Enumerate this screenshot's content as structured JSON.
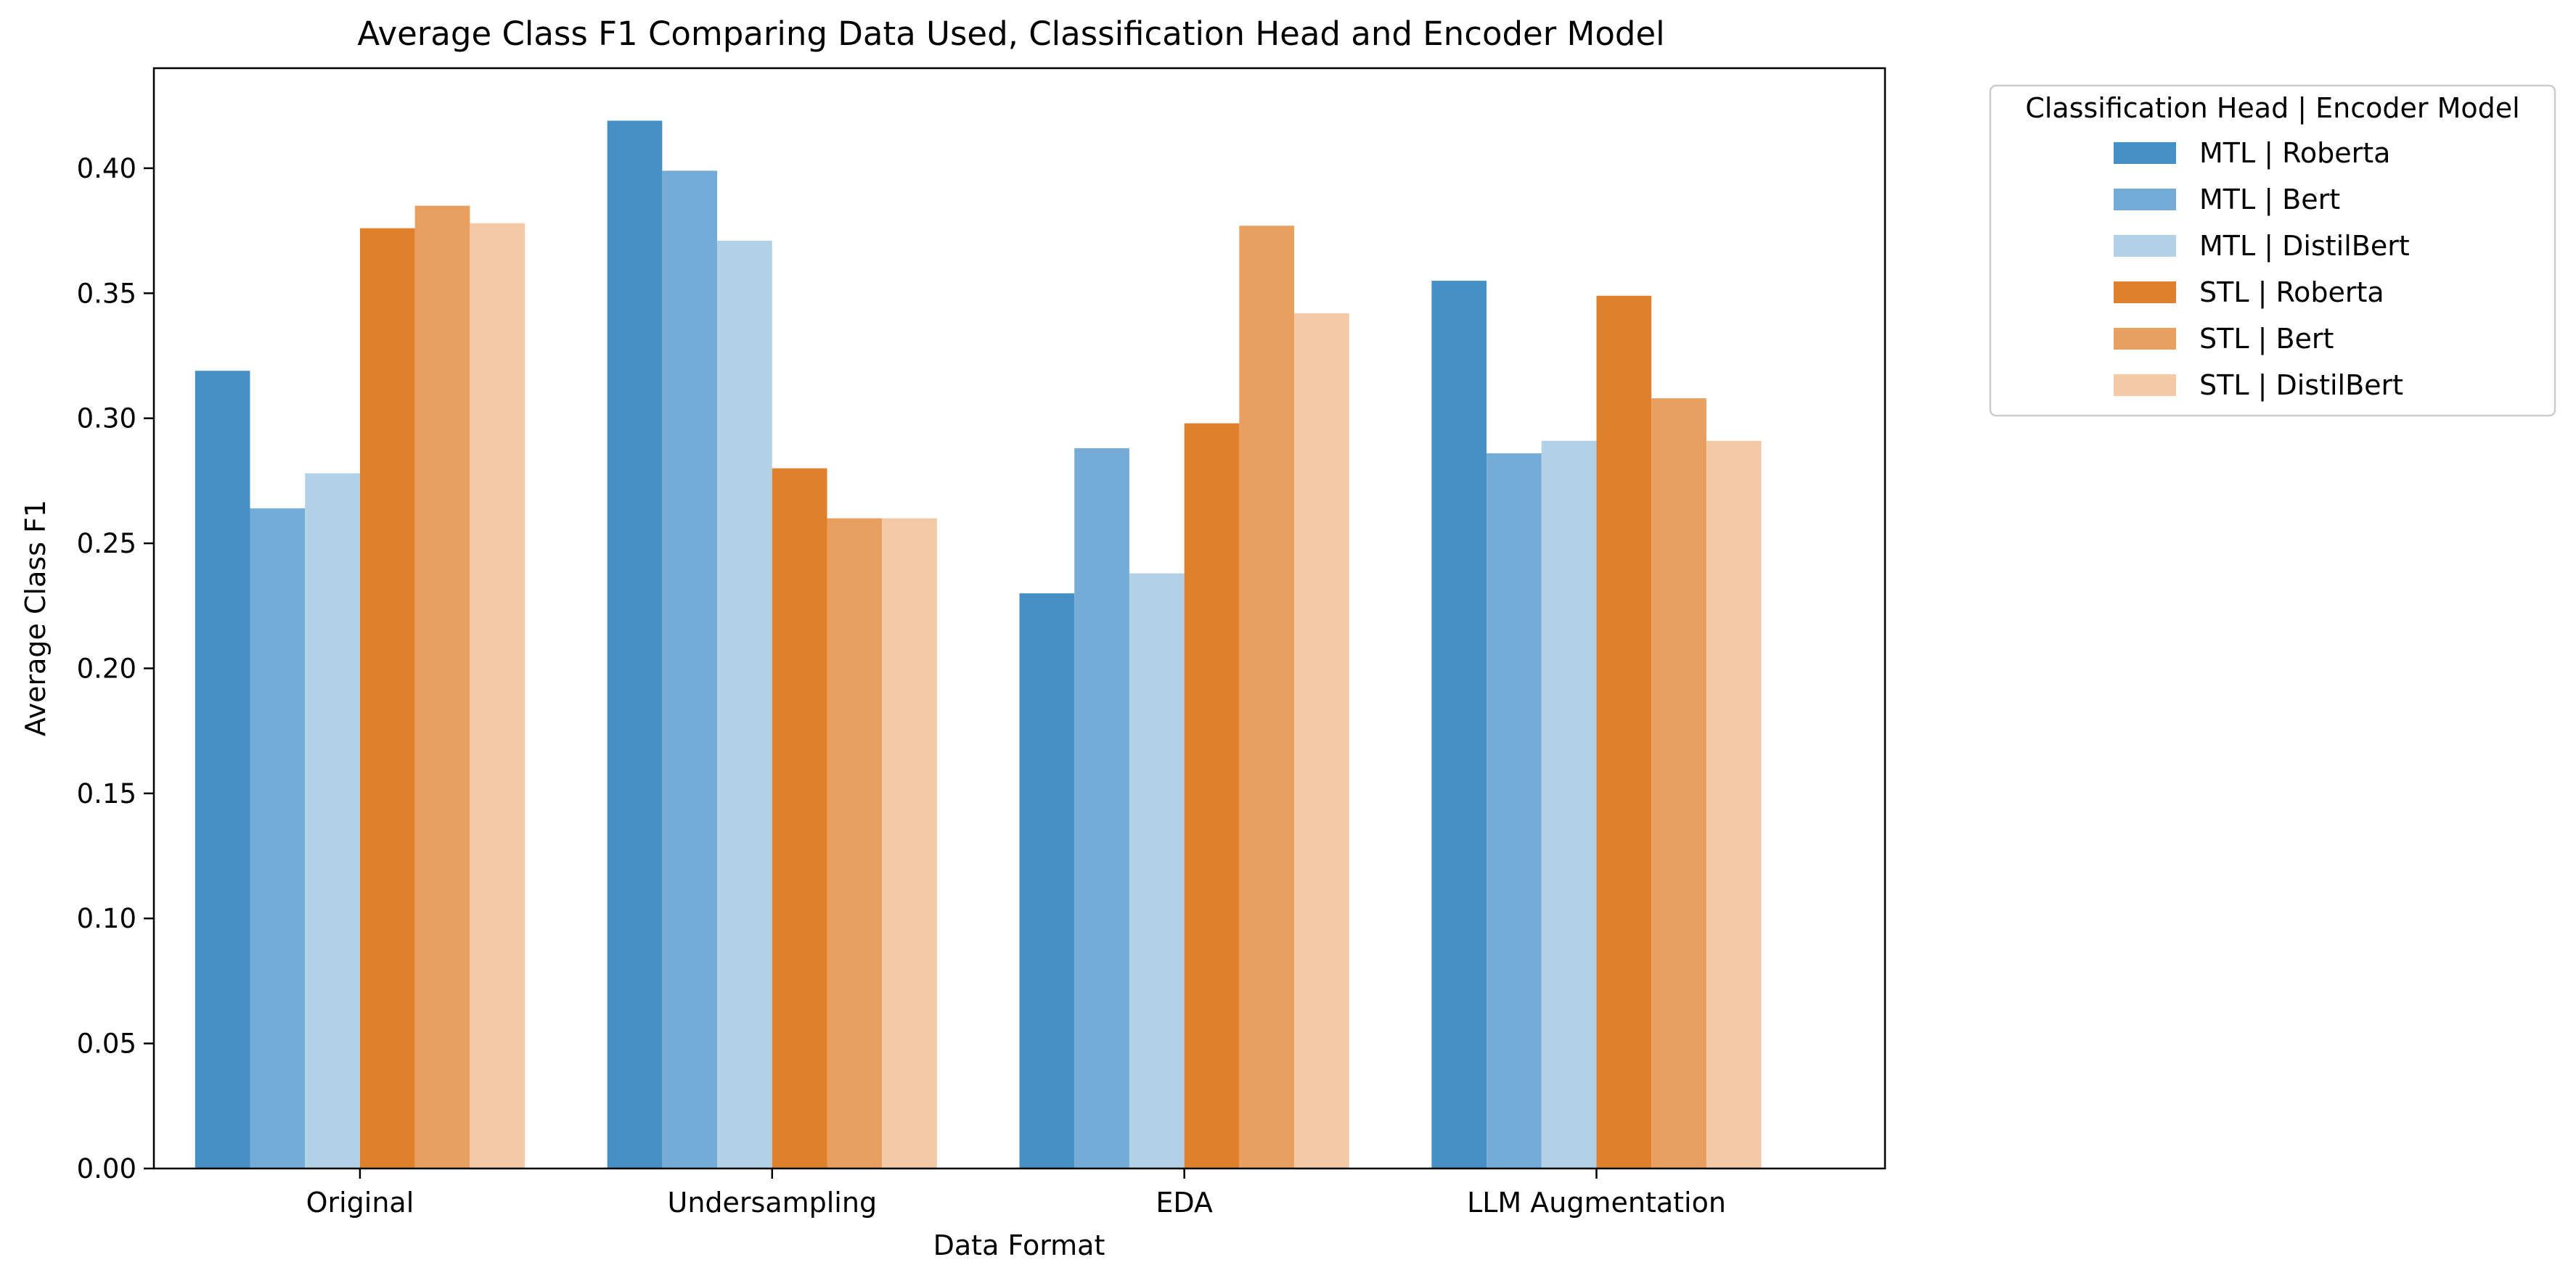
{
  "chart_data": {
    "type": "bar",
    "title": "Average Class F1 Comparing Data Used, Classification Head and Encoder Model",
    "xlabel": "Data Format",
    "ylabel": "Average Class F1",
    "categories": [
      "Original",
      "Undersampling",
      "EDA",
      "LLM Augmentation"
    ],
    "ylim": [
      0,
      0.44
    ],
    "yticks": [
      0.0,
      0.05,
      0.1,
      0.15,
      0.2,
      0.25,
      0.3,
      0.35,
      0.4
    ],
    "ytick_labels": [
      "0.00",
      "0.05",
      "0.10",
      "0.15",
      "0.20",
      "0.25",
      "0.30",
      "0.35",
      "0.40"
    ],
    "grid": false,
    "legend": {
      "title": "Classification Head | Encoder Model",
      "placement": "outside-top-right"
    },
    "series": [
      {
        "name": "MTL | Roberta",
        "color": "#4591c7",
        "values": [
          0.319,
          0.419,
          0.23,
          0.355
        ]
      },
      {
        "name": "MTL | Bert",
        "color": "#75acd7",
        "values": [
          0.264,
          0.399,
          0.288,
          0.286
        ]
      },
      {
        "name": "MTL | DistilBert",
        "color": "#b2d1e7",
        "values": [
          0.278,
          0.371,
          0.238,
          0.291
        ]
      },
      {
        "name": "STL | Roberta",
        "color": "#e0802c",
        "values": [
          0.376,
          0.28,
          0.298,
          0.349
        ]
      },
      {
        "name": "STL | Bert",
        "color": "#e99f5f",
        "values": [
          0.385,
          0.26,
          0.377,
          0.308
        ]
      },
      {
        "name": "STL | DistilBert",
        "color": "#f3caa5",
        "values": [
          0.378,
          0.26,
          0.342,
          0.291
        ]
      }
    ]
  }
}
